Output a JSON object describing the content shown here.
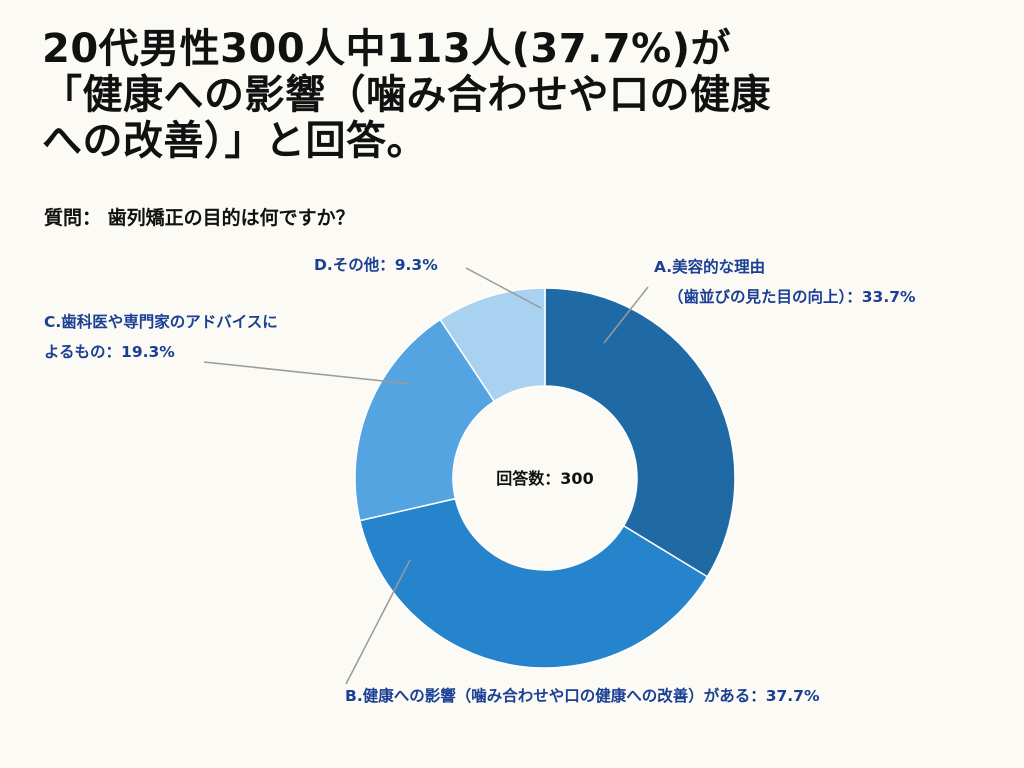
{
  "headline": "20代男性300人中113人(37.7%)が\n「健康への影響（噛み合わせや口の健康\nへの改善）」と回答。",
  "question": {
    "label": "質問：",
    "text": "歯列矯正の目的は何ですか？"
  },
  "chart_data": {
    "type": "pie",
    "donut": true,
    "center_label": "回答数：300",
    "slices": [
      {
        "label": "A.美容的な理由（歯並びの見た目の向上）",
        "value": 33.7,
        "label_lines": [
          "A.美容的な理由",
          "（歯並びの見た目の向上）：33.7%"
        ],
        "color": "#1f6aa5"
      },
      {
        "label": "B.健康への影響（噛み合わせや口の健康への改善）がある",
        "value": 37.7,
        "label_lines": [
          "B.健康への影響（噛み合わせや口の健康への改善）がある：37.7%"
        ],
        "color": "#2584cc"
      },
      {
        "label": "C.歯科医や専門家のアドバイスによるもの",
        "value": 19.3,
        "label_lines": [
          "C.歯科医や専門家のアドバイスに",
          "よるもの：19.3%"
        ],
        "color": "#53a4e0"
      },
      {
        "label": "D.その他",
        "value": 9.3,
        "label_lines": [
          "D.その他：9.3%"
        ],
        "color": "#a9d1f0"
      }
    ]
  }
}
